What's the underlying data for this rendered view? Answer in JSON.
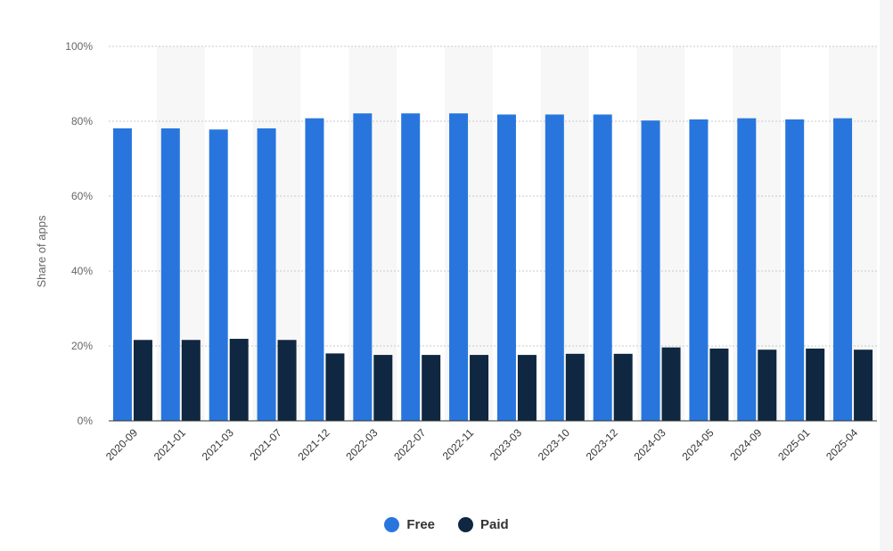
{
  "chart_data": {
    "type": "bar",
    "ylabel": "Share of apps",
    "ylim": [
      0,
      100
    ],
    "yticks": [
      "0%",
      "20%",
      "40%",
      "60%",
      "80%",
      "100%"
    ],
    "categories": [
      "2020-09",
      "2021-01",
      "2021-03",
      "2021-07",
      "2021-12",
      "2022-03",
      "2022-07",
      "2022-11",
      "2023-03",
      "2023-10",
      "2023-12",
      "2024-03",
      "2024-05",
      "2024-09",
      "2025-01",
      "2025-04"
    ],
    "series": [
      {
        "name": "Free",
        "color": "#2876dd",
        "values": [
          78.1,
          78.1,
          77.8,
          78.1,
          80.8,
          82.1,
          82.1,
          82.1,
          81.8,
          81.8,
          81.8,
          80.2,
          80.5,
          80.8,
          80.5,
          80.8
        ]
      },
      {
        "name": "Paid",
        "color": "#0f2740",
        "values": [
          21.6,
          21.6,
          21.9,
          21.6,
          18.0,
          17.6,
          17.6,
          17.6,
          17.6,
          17.9,
          17.9,
          19.6,
          19.3,
          19.0,
          19.3,
          19.0
        ]
      }
    ],
    "grid": true,
    "legend_position": "bottom-center"
  }
}
